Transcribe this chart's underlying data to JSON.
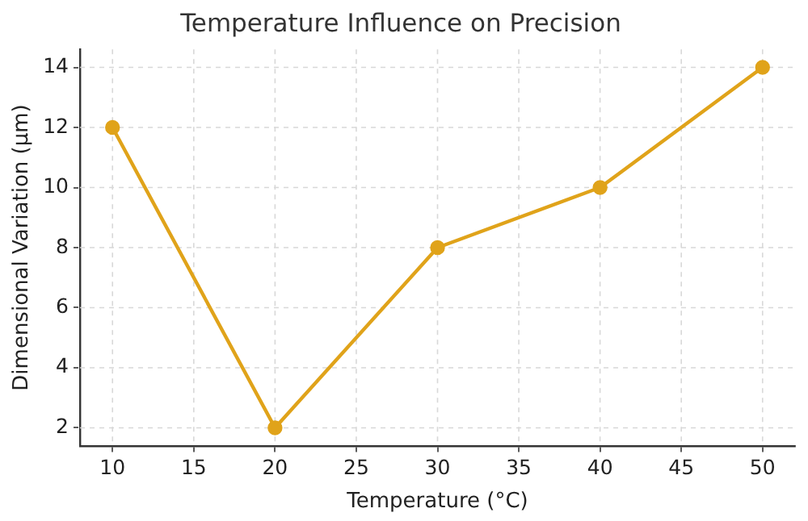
{
  "chart_data": {
    "type": "line",
    "title": "Temperature Influence on Precision",
    "xlabel": "Temperature (°C)",
    "ylabel": "Dimensional Variation (μm)",
    "x": [
      10,
      20,
      30,
      40,
      50
    ],
    "series": [
      {
        "color": "#e0a31a",
        "values": [
          12,
          2,
          8,
          10,
          14
        ]
      }
    ],
    "xlim": [
      8,
      52
    ],
    "xticks": [
      10,
      15,
      20,
      25,
      30,
      35,
      40,
      45,
      50
    ],
    "ylim": [
      1.4,
      14.6
    ],
    "yticks": [
      2,
      4,
      6,
      8,
      10,
      12,
      14
    ],
    "grid": true,
    "marker": "circle",
    "line_style": "solid",
    "legend": false
  }
}
